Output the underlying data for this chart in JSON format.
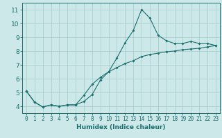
{
  "xlabel": "Humidex (Indice chaleur)",
  "ylabel": "",
  "xlim": [
    -0.5,
    23.5
  ],
  "ylim": [
    3.5,
    11.5
  ],
  "xticks": [
    0,
    1,
    2,
    3,
    4,
    5,
    6,
    7,
    8,
    9,
    10,
    11,
    12,
    13,
    14,
    15,
    16,
    17,
    18,
    19,
    20,
    21,
    22,
    23
  ],
  "yticks": [
    4,
    5,
    6,
    7,
    8,
    9,
    10,
    11
  ],
  "background_color": "#cce8e8",
  "grid_color": "#aacece",
  "line_color": "#1a6e6e",
  "line1_x": [
    0,
    1,
    2,
    3,
    4,
    5,
    6,
    7,
    8,
    9,
    10,
    11,
    12,
    13,
    14,
    15,
    16,
    17,
    18,
    19,
    20,
    21,
    22,
    23
  ],
  "line1_y": [
    5.1,
    4.3,
    3.95,
    4.1,
    4.0,
    4.1,
    4.1,
    4.35,
    4.85,
    5.9,
    6.5,
    7.5,
    8.6,
    9.5,
    11.0,
    10.4,
    9.15,
    8.75,
    8.55,
    8.55,
    8.7,
    8.55,
    8.55,
    8.4
  ],
  "line2_x": [
    0,
    1,
    2,
    3,
    4,
    5,
    6,
    7,
    8,
    9,
    10,
    11,
    12,
    13,
    14,
    15,
    16,
    17,
    18,
    19,
    20,
    21,
    22,
    23
  ],
  "line2_y": [
    5.1,
    4.3,
    3.95,
    4.1,
    4.0,
    4.1,
    4.1,
    4.8,
    5.6,
    6.1,
    6.5,
    6.8,
    7.1,
    7.3,
    7.6,
    7.75,
    7.85,
    7.95,
    8.0,
    8.1,
    8.15,
    8.2,
    8.3,
    8.4
  ],
  "tick_fontsize": 5.5,
  "xlabel_fontsize": 6.5,
  "ytick_fontsize": 6.5
}
